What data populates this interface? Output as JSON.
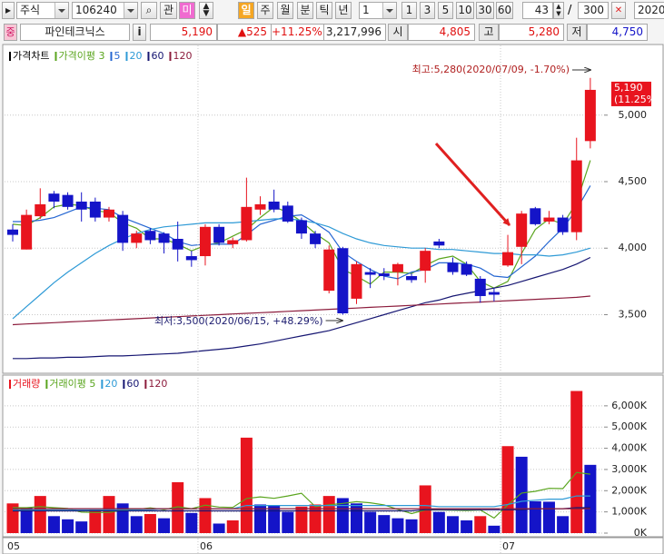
{
  "toolbar": {
    "market": "주식",
    "code": "106240",
    "watch": "관",
    "mi": "미",
    "periods": [
      "일",
      "주",
      "월",
      "분",
      "틱",
      "년"
    ],
    "period_n": "1",
    "intervals": [
      "1",
      "3",
      "5",
      "10",
      "30",
      "60"
    ],
    "count": "43",
    "slash": "/",
    "total": "300",
    "date": "2020/"
  },
  "info_bar": {
    "badge": "중",
    "name": "파인테크닉스",
    "info": "i",
    "price": "5,190",
    "change": "▲525",
    "rate": "+11.25%",
    "volume": "3,217,996",
    "open_label": "시",
    "open": "4,805",
    "high_label": "고",
    "high": "5,280",
    "low_label": "저",
    "low": "4,750"
  },
  "chart_data": [
    {
      "type": "candlestick",
      "series": [
        {
          "name": "가격차트",
          "color": "#000000",
          "up_color": "#e8141e",
          "down_color": "#1414c8",
          "open": [
            4140,
            3990,
            4240,
            4410,
            4400,
            4350,
            4350,
            4230,
            4250,
            4040,
            4130,
            4110,
            4070,
            3940,
            3940,
            4160,
            4030,
            4060,
            4290,
            4350,
            4320,
            4210,
            4110,
            3680,
            4000,
            3620,
            3820,
            3810,
            3820,
            3790,
            3830,
            4050,
            3890,
            3880,
            3770,
            3670,
            3870,
            4010,
            4300,
            4200,
            4230,
            4120,
            4805
          ],
          "high": [
            4180,
            4290,
            4450,
            4430,
            4420,
            4420,
            4380,
            4310,
            4280,
            4130,
            4150,
            4120,
            4200,
            3980,
            4180,
            4180,
            4080,
            4530,
            4390,
            4440,
            4350,
            4230,
            4130,
            4020,
            4010,
            3900,
            3850,
            3850,
            3890,
            3810,
            4000,
            4070,
            3930,
            3900,
            3790,
            3700,
            4100,
            4280,
            4310,
            4280,
            4250,
            4830,
            5280
          ],
          "low": [
            4050,
            3990,
            4220,
            4300,
            4290,
            4200,
            4200,
            4200,
            3980,
            4000,
            4030,
            3960,
            3900,
            3860,
            3870,
            4020,
            4000,
            4050,
            4250,
            4270,
            4190,
            4070,
            4000,
            3660,
            3500,
            3580,
            3700,
            3760,
            3720,
            3740,
            3740,
            4000,
            3800,
            3790,
            3590,
            3600,
            3860,
            3880,
            4170,
            4180,
            4100,
            4060,
            4750
          ],
          "close": [
            4100,
            4250,
            4330,
            4350,
            4310,
            4290,
            4230,
            4290,
            4040,
            4110,
            4060,
            4040,
            3990,
            3910,
            4160,
            4040,
            4060,
            4310,
            4330,
            4290,
            4200,
            4110,
            4030,
            3990,
            3510,
            3880,
            3800,
            3790,
            3880,
            3760,
            3980,
            4020,
            3820,
            3800,
            3640,
            3650,
            3970,
            4260,
            4180,
            4230,
            4120,
            4660,
            5190
          ]
        },
        {
          "name": "가격이평 3",
          "color": "#5aa51e",
          "values": [
            4180,
            4170,
            4230,
            4310,
            4330,
            4320,
            4280,
            4270,
            4190,
            4150,
            4070,
            4070,
            4030,
            3980,
            4020,
            4040,
            4090,
            4140,
            4230,
            4310,
            4270,
            4200,
            4110,
            4040,
            3840,
            3790,
            3730,
            3820,
            3820,
            3810,
            3870,
            3920,
            3940,
            3880,
            3750,
            3700,
            3750,
            3960,
            4140,
            4220,
            4180,
            4340,
            4660
          ]
        },
        {
          "name": "5",
          "color": "#2466d2",
          "values": [
            4200,
            4200,
            4210,
            4230,
            4270,
            4310,
            4300,
            4290,
            4230,
            4190,
            4150,
            4110,
            4050,
            4020,
            4030,
            4030,
            4030,
            4100,
            4180,
            4210,
            4240,
            4250,
            4190,
            4120,
            3970,
            3900,
            3840,
            3790,
            3770,
            3820,
            3840,
            3890,
            3890,
            3880,
            3850,
            3790,
            3780,
            3860,
            3940,
            4050,
            4150,
            4290,
            4470
          ]
        },
        {
          "name": "20",
          "color": "#2e9ad6",
          "values": [
            3470,
            3560,
            3650,
            3740,
            3820,
            3890,
            3960,
            4020,
            4070,
            4110,
            4140,
            4160,
            4170,
            4180,
            4190,
            4190,
            4190,
            4200,
            4210,
            4220,
            4220,
            4210,
            4190,
            4160,
            4110,
            4070,
            4040,
            4020,
            4010,
            4000,
            4000,
            3990,
            3990,
            3980,
            3970,
            3960,
            3960,
            3950,
            3950,
            3940,
            3950,
            3970,
            4000
          ]
        },
        {
          "name": "60",
          "color": "#161672",
          "values": [
            3170,
            3170,
            3175,
            3175,
            3180,
            3180,
            3185,
            3190,
            3190,
            3195,
            3200,
            3205,
            3210,
            3220,
            3230,
            3240,
            3250,
            3265,
            3280,
            3300,
            3320,
            3340,
            3360,
            3380,
            3410,
            3440,
            3470,
            3500,
            3530,
            3560,
            3590,
            3610,
            3640,
            3660,
            3680,
            3700,
            3720,
            3750,
            3780,
            3810,
            3840,
            3880,
            3930
          ]
        },
        {
          "name": "120",
          "color": "#8c1c3c",
          "values": [
            3425,
            3430,
            3435,
            3440,
            3445,
            3450,
            3455,
            3460,
            3465,
            3470,
            3475,
            3480,
            3485,
            3490,
            3495,
            3500,
            3505,
            3510,
            3515,
            3520,
            3525,
            3530,
            3535,
            3540,
            3545,
            3550,
            3555,
            3560,
            3565,
            3570,
            3575,
            3580,
            3585,
            3590,
            3595,
            3600,
            3605,
            3610,
            3615,
            3620,
            3625,
            3630,
            3640
          ]
        }
      ],
      "ylim": [
        3080,
        5490
      ],
      "yticks": [
        {
          "value": 3500,
          "label": "3,500"
        },
        {
          "value": 4000,
          "label": "4,000"
        },
        {
          "value": 4500,
          "label": "4,500"
        },
        {
          "value": 5000,
          "label": "5,000"
        }
      ],
      "grid": true,
      "last_price_label": "5,190",
      "last_change_label": "(11.25%)",
      "annotations": [
        "최고:5,280(2020/07/09, -1.70%)",
        "최저:3,500(2020/06/15, +48.29%)"
      ]
    },
    {
      "type": "bar",
      "categories": [
        "05",
        null,
        null,
        null,
        null,
        null,
        null,
        null,
        null,
        null,
        null,
        null,
        null,
        null,
        "06",
        null,
        null,
        null,
        null,
        null,
        null,
        null,
        null,
        null,
        null,
        null,
        null,
        null,
        null,
        null,
        null,
        null,
        null,
        null,
        null,
        null,
        "07",
        null,
        null,
        null,
        null,
        null,
        null
      ],
      "series": [
        {
          "name": "거래량",
          "color": "#e8141e",
          "up_color": "#e8141e",
          "down_color": "#1414c8",
          "values": [
            1400,
            1200,
            1750,
            800,
            650,
            550,
            1100,
            1750,
            1400,
            800,
            900,
            700,
            2400,
            950,
            1650,
            450,
            600,
            4500,
            1350,
            1300,
            1000,
            1250,
            1350,
            1750,
            1650,
            1400,
            1000,
            850,
            700,
            650,
            2250,
            1000,
            800,
            600,
            800,
            350,
            4100,
            3600,
            1500,
            1480,
            800,
            6700,
            3218
          ]
        },
        {
          "name": "거래이평 5",
          "color": "#5aa51e",
          "values": [
            1200,
            1200,
            1250,
            1200,
            1160,
            990,
            970,
            970,
            1090,
            1120,
            1190,
            1110,
            1240,
            1150,
            1320,
            1230,
            1210,
            1630,
            1710,
            1640,
            1750,
            1880,
            1250,
            1330,
            1400,
            1480,
            1430,
            1330,
            1120,
            920,
            1090,
            1090,
            1080,
            1060,
            1090,
            710,
            1330,
            1890,
            1970,
            2110,
            2100,
            2860,
            2780
          ]
        },
        {
          "name": "20",
          "color": "#2e9ad6",
          "values": [
            1100,
            1100,
            1100,
            1100,
            1100,
            1100,
            1100,
            1100,
            1100,
            1100,
            1100,
            1150,
            1150,
            1150,
            1150,
            1150,
            1150,
            1300,
            1300,
            1300,
            1300,
            1300,
            1300,
            1300,
            1300,
            1300,
            1300,
            1300,
            1300,
            1300,
            1300,
            1250,
            1250,
            1250,
            1250,
            1250,
            1350,
            1500,
            1550,
            1600,
            1600,
            1750,
            1750
          ]
        },
        {
          "name": "60",
          "color": "#161672",
          "values": [
            1050,
            1050,
            1050,
            1050,
            1050,
            1050,
            1050,
            1050,
            1050,
            1050,
            1050,
            1050,
            1050,
            1050,
            1050,
            1050,
            1050,
            1050,
            1050,
            1050,
            1050,
            1050,
            1050,
            1050,
            1050,
            1050,
            1050,
            1050,
            1050,
            1050,
            1100,
            1100,
            1100,
            1100,
            1100,
            1100,
            1100,
            1100,
            1150,
            1150,
            1150,
            1200,
            1200
          ]
        },
        {
          "name": "120",
          "color": "#8c1c3c",
          "values": [
            1150,
            1150,
            1150,
            1150,
            1150,
            1150,
            1150,
            1150,
            1150,
            1150,
            1150,
            1150,
            1150,
            1150,
            1150,
            1150,
            1150,
            1150,
            1150,
            1150,
            1150,
            1150,
            1150,
            1150,
            1150,
            1150,
            1150,
            1150,
            1150,
            1150,
            1150,
            1150,
            1150,
            1150,
            1150,
            1150,
            1150,
            1150,
            1150,
            1150,
            1150,
            1150,
            1150
          ]
        }
      ],
      "ylim": [
        0,
        7150
      ],
      "yticks": [
        {
          "value": 0,
          "label": "0K"
        },
        {
          "value": 1000,
          "label": "1,000K"
        },
        {
          "value": 2000,
          "label": "2,000K"
        },
        {
          "value": 3000,
          "label": "3,000K"
        },
        {
          "value": 4000,
          "label": "4,000K"
        },
        {
          "value": 5000,
          "label": "5,000K"
        },
        {
          "value": 6000,
          "label": "6,000K"
        }
      ],
      "grid": true
    }
  ]
}
